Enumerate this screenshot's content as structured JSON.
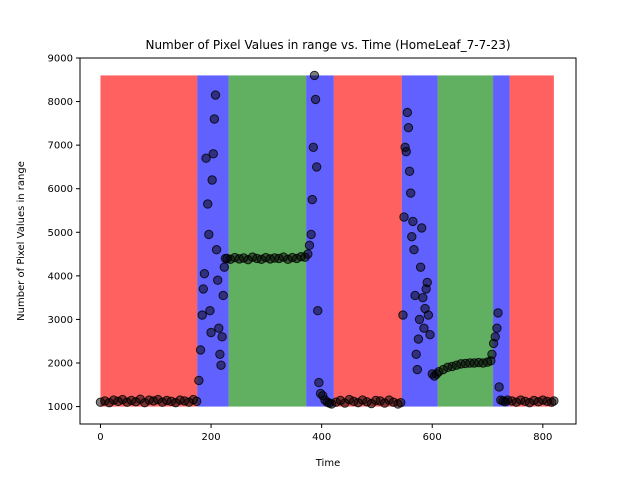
{
  "chart_data": {
    "type": "scatter",
    "title": "Number of Pixel Values in range vs. Time (HomeLeaf_7-7-23)",
    "xlabel": "Time",
    "ylabel": "Number of Pixel Values in range",
    "xlim": [
      -37,
      860
    ],
    "ylim": [
      600,
      9000
    ],
    "xticks": [
      0,
      200,
      400,
      600,
      800
    ],
    "yticks": [
      1000,
      2000,
      3000,
      4000,
      5000,
      6000,
      7000,
      8000,
      9000
    ],
    "grid": false,
    "background_bands": [
      {
        "x_start": 0,
        "x_end": 175,
        "y_top": 8600,
        "color": "#ff0000"
      },
      {
        "x_start": 175,
        "x_end": 232,
        "y_top": 8600,
        "color": "#0000ff"
      },
      {
        "x_start": 232,
        "x_end": 372,
        "y_top": 8600,
        "color": "#008000"
      },
      {
        "x_start": 372,
        "x_end": 422,
        "y_top": 8600,
        "color": "#0000ff"
      },
      {
        "x_start": 422,
        "x_end": 545,
        "y_top": 8600,
        "color": "#ff0000"
      },
      {
        "x_start": 545,
        "x_end": 610,
        "y_top": 8600,
        "color": "#0000ff"
      },
      {
        "x_start": 610,
        "x_end": 710,
        "y_top": 8600,
        "color": "#008000"
      },
      {
        "x_start": 710,
        "x_end": 740,
        "y_top": 8600,
        "color": "#0000ff"
      },
      {
        "x_start": 740,
        "x_end": 820,
        "y_top": 8600,
        "color": "#ff0000"
      }
    ],
    "series": [
      {
        "marker_color": "#000000",
        "points": [
          [
            0,
            1100
          ],
          [
            8,
            1130
          ],
          [
            16,
            1090
          ],
          [
            24,
            1150
          ],
          [
            32,
            1120
          ],
          [
            40,
            1160
          ],
          [
            48,
            1100
          ],
          [
            56,
            1140
          ],
          [
            64,
            1110
          ],
          [
            72,
            1170
          ],
          [
            80,
            1090
          ],
          [
            88,
            1150
          ],
          [
            96,
            1130
          ],
          [
            104,
            1160
          ],
          [
            112,
            1100
          ],
          [
            120,
            1140
          ],
          [
            128,
            1120
          ],
          [
            136,
            1090
          ],
          [
            144,
            1150
          ],
          [
            152,
            1130
          ],
          [
            160,
            1100
          ],
          [
            168,
            1160
          ],
          [
            174,
            1120
          ],
          [
            178,
            1600
          ],
          [
            181,
            2300
          ],
          [
            184,
            3100
          ],
          [
            186,
            3700
          ],
          [
            188,
            4050
          ],
          [
            191,
            6700
          ],
          [
            194,
            5650
          ],
          [
            196,
            4950
          ],
          [
            198,
            3200
          ],
          [
            200,
            2700
          ],
          [
            202,
            6200
          ],
          [
            204,
            6800
          ],
          [
            206,
            7600
          ],
          [
            208,
            8150
          ],
          [
            210,
            4600
          ],
          [
            212,
            3900
          ],
          [
            214,
            2800
          ],
          [
            216,
            2200
          ],
          [
            218,
            1950
          ],
          [
            220,
            2600
          ],
          [
            222,
            3550
          ],
          [
            224,
            4200
          ],
          [
            226,
            4400
          ],
          [
            229,
            4400
          ],
          [
            235,
            4380
          ],
          [
            243,
            4420
          ],
          [
            251,
            4390
          ],
          [
            259,
            4410
          ],
          [
            267,
            4370
          ],
          [
            275,
            4430
          ],
          [
            283,
            4400
          ],
          [
            291,
            4380
          ],
          [
            299,
            4420
          ],
          [
            307,
            4390
          ],
          [
            315,
            4410
          ],
          [
            323,
            4400
          ],
          [
            331,
            4430
          ],
          [
            339,
            4380
          ],
          [
            347,
            4420
          ],
          [
            355,
            4400
          ],
          [
            363,
            4440
          ],
          [
            370,
            4430
          ],
          [
            375,
            4500
          ],
          [
            378,
            4700
          ],
          [
            381,
            4950
          ],
          [
            383,
            5750
          ],
          [
            385,
            6950
          ],
          [
            387,
            8600
          ],
          [
            389,
            8050
          ],
          [
            391,
            6500
          ],
          [
            393,
            3200
          ],
          [
            395,
            1550
          ],
          [
            398,
            1300
          ],
          [
            402,
            1250
          ],
          [
            406,
            1150
          ],
          [
            410,
            1100
          ],
          [
            414,
            1080
          ],
          [
            418,
            1060
          ],
          [
            426,
            1100
          ],
          [
            434,
            1140
          ],
          [
            442,
            1080
          ],
          [
            450,
            1160
          ],
          [
            458,
            1120
          ],
          [
            466,
            1090
          ],
          [
            474,
            1150
          ],
          [
            482,
            1110
          ],
          [
            490,
            1070
          ],
          [
            498,
            1140
          ],
          [
            506,
            1130
          ],
          [
            514,
            1080
          ],
          [
            522,
            1150
          ],
          [
            530,
            1100
          ],
          [
            538,
            1060
          ],
          [
            543,
            1090
          ],
          [
            547,
            3100
          ],
          [
            549,
            5350
          ],
          [
            551,
            6950
          ],
          [
            553,
            6850
          ],
          [
            555,
            7750
          ],
          [
            557,
            7400
          ],
          [
            559,
            6400
          ],
          [
            561,
            5900
          ],
          [
            563,
            4900
          ],
          [
            565,
            5250
          ],
          [
            567,
            4600
          ],
          [
            569,
            3550
          ],
          [
            571,
            2200
          ],
          [
            573,
            1850
          ],
          [
            575,
            2550
          ],
          [
            577,
            3000
          ],
          [
            579,
            4200
          ],
          [
            581,
            5100
          ],
          [
            583,
            3500
          ],
          [
            585,
            2800
          ],
          [
            587,
            3250
          ],
          [
            589,
            3700
          ],
          [
            591,
            3850
          ],
          [
            593,
            3100
          ],
          [
            596,
            2650
          ],
          [
            600,
            1750
          ],
          [
            604,
            1700
          ],
          [
            608,
            1750
          ],
          [
            612,
            1800
          ],
          [
            620,
            1850
          ],
          [
            628,
            1900
          ],
          [
            636,
            1920
          ],
          [
            644,
            1950
          ],
          [
            652,
            1980
          ],
          [
            660,
            1990
          ],
          [
            668,
            2000
          ],
          [
            676,
            2000
          ],
          [
            684,
            2010
          ],
          [
            692,
            2000
          ],
          [
            700,
            2020
          ],
          [
            706,
            2050
          ],
          [
            708,
            2200
          ],
          [
            711,
            2450
          ],
          [
            714,
            2600
          ],
          [
            717,
            2800
          ],
          [
            719,
            3150
          ],
          [
            721,
            1450
          ],
          [
            724,
            1150
          ],
          [
            728,
            1130
          ],
          [
            732,
            1110
          ],
          [
            736,
            1150
          ],
          [
            744,
            1130
          ],
          [
            752,
            1100
          ],
          [
            760,
            1150
          ],
          [
            768,
            1120
          ],
          [
            776,
            1090
          ],
          [
            784,
            1140
          ],
          [
            792,
            1110
          ],
          [
            800,
            1150
          ],
          [
            808,
            1120
          ],
          [
            816,
            1100
          ],
          [
            820,
            1130
          ]
        ]
      }
    ]
  }
}
